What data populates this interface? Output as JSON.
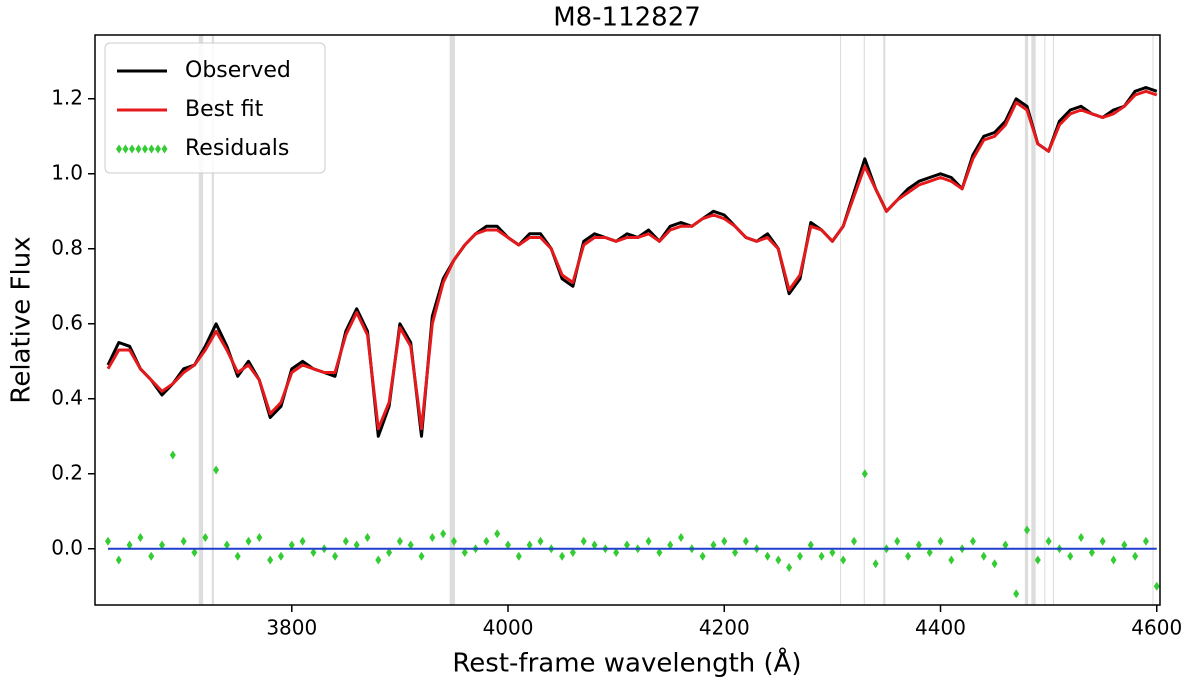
{
  "chart_data": {
    "type": "line",
    "title": "M8-112827",
    "xlabel": "Rest-frame wavelength (Å)",
    "ylabel": "Relative Flux",
    "xlim": [
      3618,
      4603
    ],
    "ylim": [
      -0.15,
      1.37
    ],
    "xticks": [
      3800,
      4000,
      4200,
      4400,
      4600
    ],
    "yticks": [
      {
        "value": 0,
        "label": "0.0"
      },
      0.2,
      0.4,
      0.6,
      0.8,
      {
        "value": 1,
        "label": "1.0"
      },
      1.2
    ],
    "legend": "upper left",
    "x": [
      3630,
      3640,
      3650,
      3660,
      3670,
      3680,
      3690,
      3700,
      3710,
      3720,
      3730,
      3740,
      3750,
      3760,
      3770,
      3780,
      3790,
      3800,
      3810,
      3820,
      3830,
      3840,
      3850,
      3860,
      3870,
      3880,
      3890,
      3900,
      3910,
      3920,
      3930,
      3940,
      3950,
      3960,
      3970,
      3980,
      3990,
      4000,
      4010,
      4020,
      4030,
      4040,
      4050,
      4060,
      4070,
      4080,
      4090,
      4100,
      4110,
      4120,
      4130,
      4140,
      4150,
      4160,
      4170,
      4180,
      4190,
      4200,
      4210,
      4220,
      4230,
      4240,
      4250,
      4260,
      4270,
      4280,
      4290,
      4300,
      4310,
      4320,
      4330,
      4340,
      4350,
      4360,
      4370,
      4380,
      4390,
      4400,
      4410,
      4420,
      4430,
      4440,
      4450,
      4460,
      4470,
      4480,
      4490,
      4500,
      4510,
      4520,
      4530,
      4540,
      4550,
      4560,
      4570,
      4580,
      4590,
      4600
    ],
    "series": [
      {
        "name": "Observed",
        "color": "#000000",
        "style": "line",
        "values": [
          0.49,
          0.55,
          0.54,
          0.48,
          0.45,
          0.41,
          0.44,
          0.48,
          0.49,
          0.54,
          0.6,
          0.54,
          0.46,
          0.5,
          0.45,
          0.35,
          0.38,
          0.48,
          0.5,
          0.48,
          0.47,
          0.46,
          0.58,
          0.64,
          0.58,
          0.3,
          0.38,
          0.6,
          0.55,
          0.3,
          0.62,
          0.72,
          0.77,
          0.81,
          0.84,
          0.86,
          0.86,
          0.83,
          0.81,
          0.84,
          0.84,
          0.8,
          0.72,
          0.7,
          0.82,
          0.84,
          0.83,
          0.82,
          0.84,
          0.83,
          0.85,
          0.82,
          0.86,
          0.87,
          0.86,
          0.88,
          0.9,
          0.89,
          0.86,
          0.83,
          0.82,
          0.84,
          0.8,
          0.68,
          0.72,
          0.87,
          0.85,
          0.82,
          0.86,
          0.95,
          1.04,
          0.96,
          0.9,
          0.93,
          0.96,
          0.98,
          0.99,
          1.0,
          0.99,
          0.96,
          1.05,
          1.1,
          1.11,
          1.14,
          1.2,
          1.18,
          1.08,
          1.06,
          1.14,
          1.17,
          1.18,
          1.16,
          1.15,
          1.17,
          1.18,
          1.22,
          1.23,
          1.22
        ]
      },
      {
        "name": "Best fit",
        "color": "#e41a1c",
        "style": "line",
        "values": [
          0.48,
          0.53,
          0.53,
          0.48,
          0.45,
          0.42,
          0.44,
          0.47,
          0.49,
          0.53,
          0.58,
          0.53,
          0.47,
          0.49,
          0.45,
          0.36,
          0.39,
          0.47,
          0.49,
          0.48,
          0.47,
          0.47,
          0.57,
          0.63,
          0.57,
          0.32,
          0.39,
          0.59,
          0.54,
          0.32,
          0.6,
          0.71,
          0.77,
          0.81,
          0.84,
          0.85,
          0.85,
          0.83,
          0.81,
          0.83,
          0.83,
          0.8,
          0.73,
          0.71,
          0.81,
          0.83,
          0.83,
          0.82,
          0.83,
          0.83,
          0.84,
          0.82,
          0.85,
          0.86,
          0.86,
          0.88,
          0.89,
          0.88,
          0.86,
          0.83,
          0.82,
          0.83,
          0.8,
          0.69,
          0.73,
          0.86,
          0.85,
          0.82,
          0.86,
          0.94,
          1.02,
          0.96,
          0.9,
          0.93,
          0.95,
          0.97,
          0.98,
          0.99,
          0.98,
          0.96,
          1.04,
          1.09,
          1.1,
          1.13,
          1.19,
          1.17,
          1.08,
          1.06,
          1.13,
          1.16,
          1.17,
          1.16,
          1.15,
          1.16,
          1.18,
          1.21,
          1.22,
          1.21
        ]
      },
      {
        "name": "Residuals",
        "color": "#33cc33",
        "style": "markers",
        "values": [
          0.02,
          -0.03,
          0.01,
          0.03,
          -0.02,
          0.01,
          0.25,
          0.02,
          -0.01,
          0.03,
          0.21,
          0.01,
          -0.02,
          0.02,
          0.03,
          -0.03,
          -0.02,
          0.01,
          0.02,
          -0.01,
          0.0,
          -0.02,
          0.02,
          0.01,
          0.03,
          -0.03,
          -0.01,
          0.02,
          0.01,
          -0.02,
          0.03,
          0.04,
          0.02,
          -0.01,
          0.0,
          0.02,
          0.04,
          0.01,
          -0.02,
          0.01,
          0.02,
          0.0,
          -0.02,
          -0.01,
          0.02,
          0.01,
          0.0,
          -0.01,
          0.01,
          0.0,
          0.02,
          -0.01,
          0.01,
          0.03,
          0.0,
          -0.02,
          0.01,
          0.02,
          -0.01,
          0.02,
          0.0,
          -0.02,
          -0.03,
          -0.05,
          -0.02,
          0.01,
          -0.02,
          -0.01,
          -0.03,
          0.02,
          0.2,
          -0.04,
          0.0,
          0.02,
          -0.02,
          0.01,
          -0.01,
          0.02,
          -0.03,
          0.0,
          0.02,
          -0.02,
          -0.04,
          0.01,
          -0.12,
          0.05,
          -0.03,
          0.02,
          0.0,
          -0.02,
          0.03,
          -0.01,
          0.02,
          -0.03,
          0.01,
          -0.02,
          0.02,
          -0.1
        ]
      }
    ],
    "reference_line": {
      "value": 0,
      "color": "#1f3fcc"
    },
    "masked_regions": [
      [
        3714,
        3718
      ],
      [
        3726,
        3728
      ],
      [
        3946,
        3951
      ],
      [
        4307,
        4308
      ],
      [
        4329,
        4330
      ],
      [
        4347,
        4349
      ],
      [
        4478,
        4481
      ],
      [
        4484,
        4488
      ],
      [
        4496,
        4497
      ],
      [
        4504,
        4505
      ],
      [
        4596,
        4597
      ]
    ],
    "masked_color": "#dddddd"
  }
}
